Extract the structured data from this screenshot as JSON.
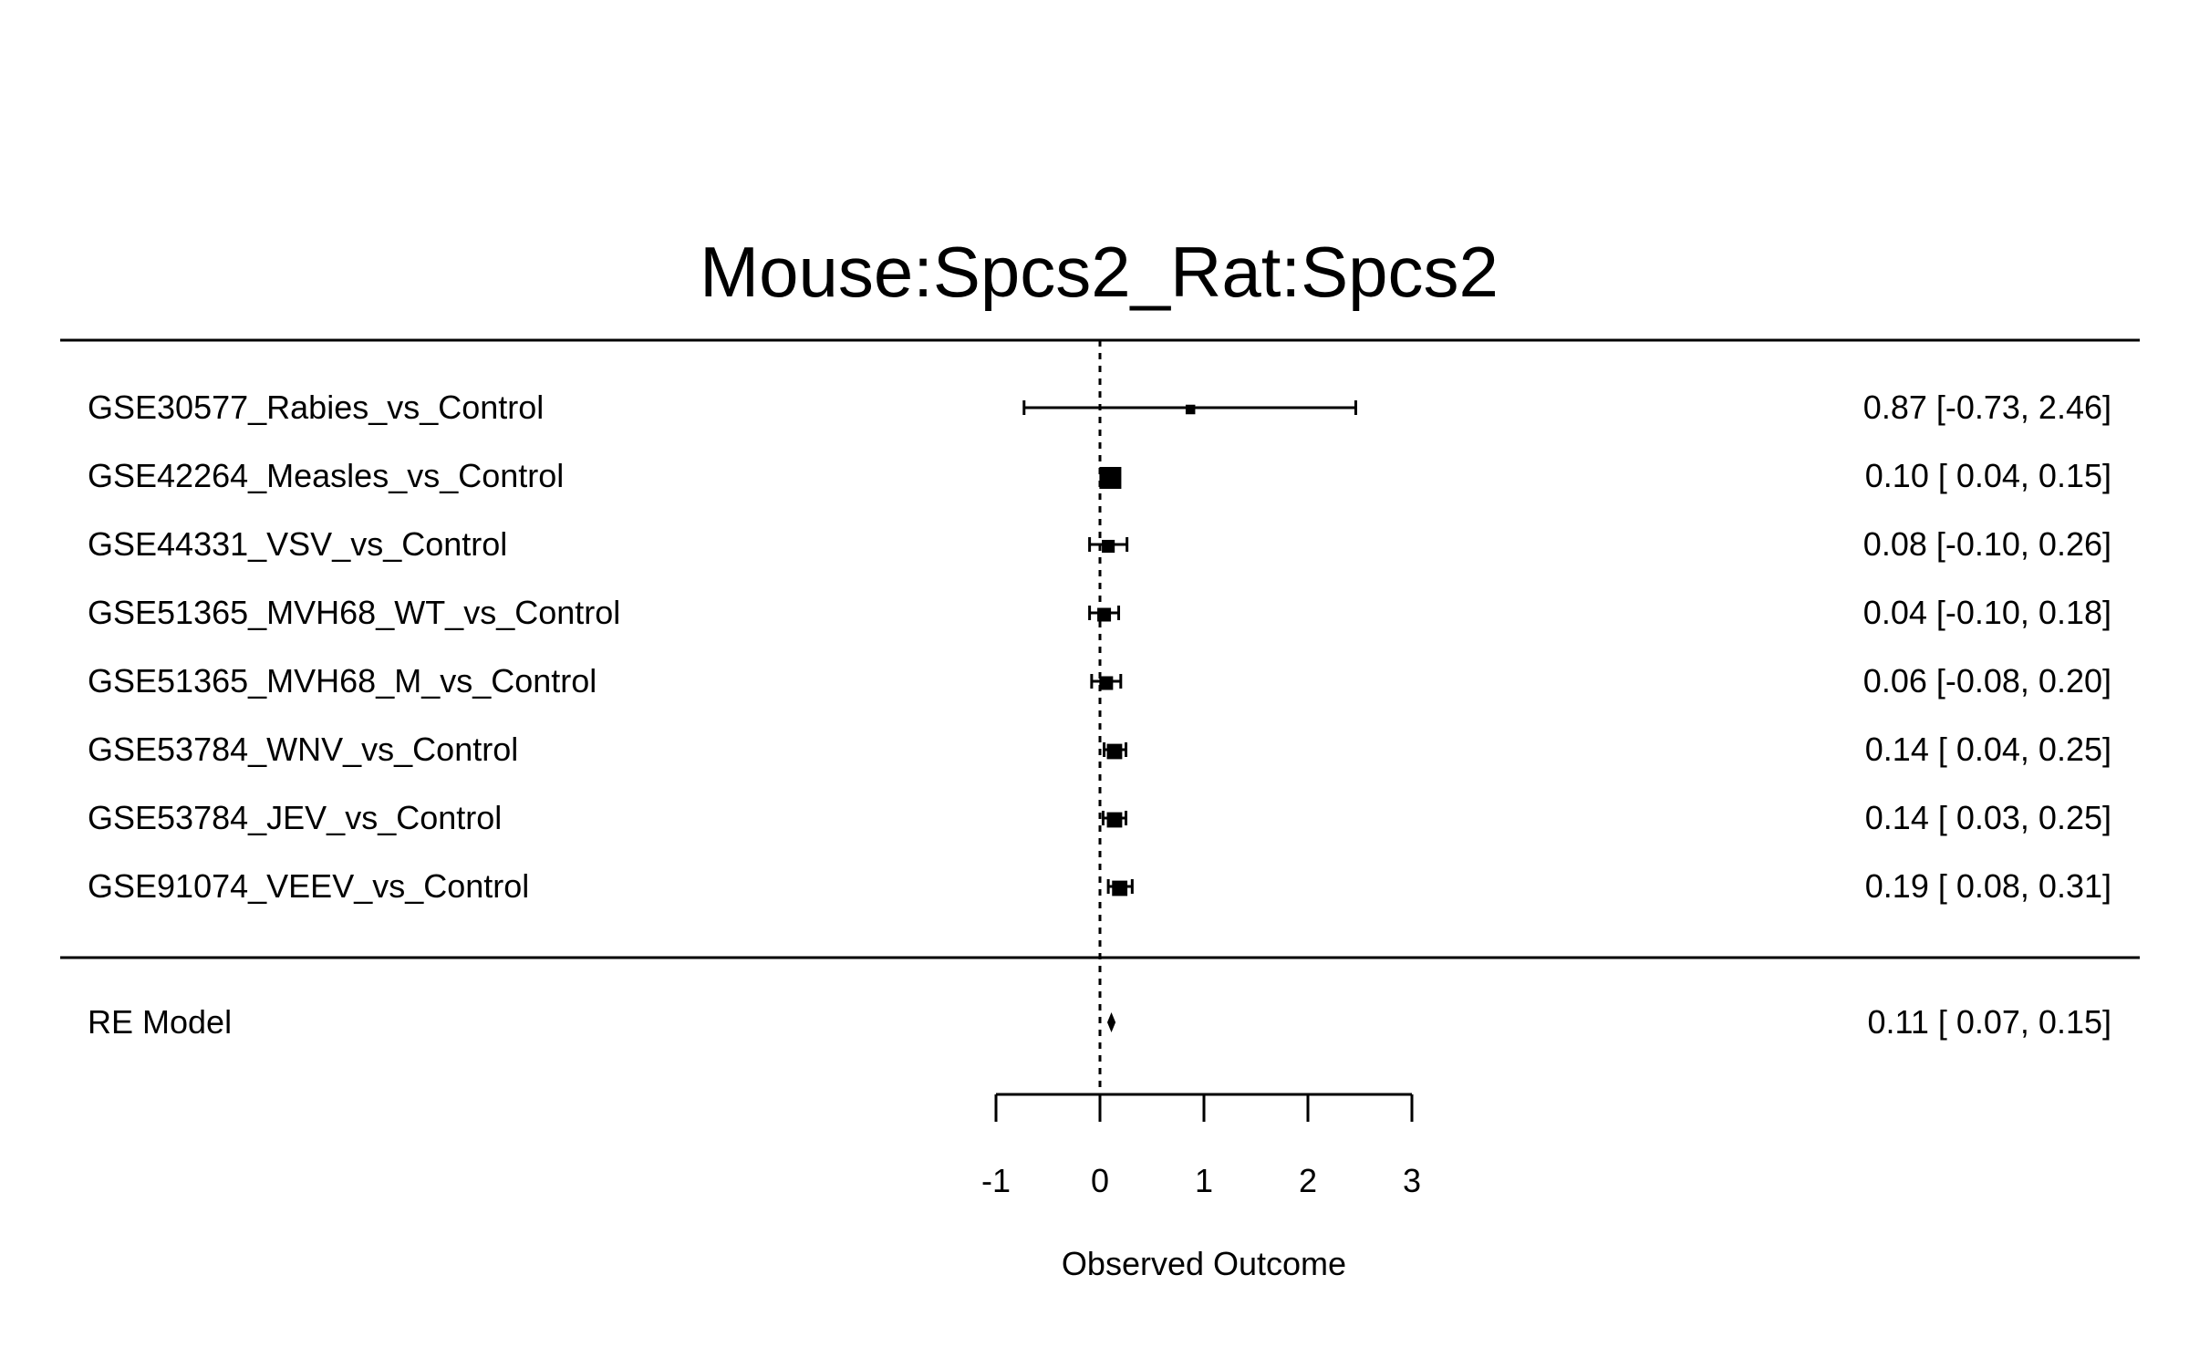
{
  "chart_data": {
    "type": "forest",
    "title": "Mouse:Spcs2_Rat:Spcs2",
    "xlabel": "Observed Outcome",
    "xlim": [
      -1,
      3
    ],
    "xticks": [
      "-1",
      "0",
      "1",
      "2",
      "3"
    ],
    "reference_line": 0,
    "studies": [
      {
        "name": "GSE30577_Rabies_vs_Control",
        "estimate": 0.87,
        "lower": -0.73,
        "upper": 2.46,
        "text": "0.87 [-0.73, 2.46]",
        "weight": 0.25
      },
      {
        "name": "GSE42264_Measles_vs_Control",
        "estimate": 0.1,
        "lower": 0.04,
        "upper": 0.15,
        "text": "0.10 [ 0.04, 0.15]",
        "weight": 1.0
      },
      {
        "name": "GSE44331_VSV_vs_Control",
        "estimate": 0.08,
        "lower": -0.1,
        "upper": 0.26,
        "text": "0.08 [-0.10, 0.26]",
        "weight": 0.45
      },
      {
        "name": "GSE51365_MVH68_WT_vs_Control",
        "estimate": 0.04,
        "lower": -0.1,
        "upper": 0.18,
        "text": "0.04 [-0.10, 0.18]",
        "weight": 0.5
      },
      {
        "name": "GSE51365_MVH68_M_vs_Control",
        "estimate": 0.06,
        "lower": -0.08,
        "upper": 0.2,
        "text": "0.06 [-0.08, 0.20]",
        "weight": 0.5
      },
      {
        "name": "GSE53784_WNV_vs_Control",
        "estimate": 0.14,
        "lower": 0.04,
        "upper": 0.25,
        "text": "0.14 [ 0.04, 0.25]",
        "weight": 0.6
      },
      {
        "name": "GSE53784_JEV_vs_Control",
        "estimate": 0.14,
        "lower": 0.03,
        "upper": 0.25,
        "text": "0.14 [ 0.03, 0.25]",
        "weight": 0.6
      },
      {
        "name": "GSE91074_VEEV_vs_Control",
        "estimate": 0.19,
        "lower": 0.08,
        "upper": 0.31,
        "text": "0.19 [ 0.08, 0.31]",
        "weight": 0.6
      }
    ],
    "summary": {
      "name": "RE Model",
      "estimate": 0.11,
      "lower": 0.07,
      "upper": 0.15,
      "text": "0.11 [ 0.07, 0.15]"
    }
  }
}
